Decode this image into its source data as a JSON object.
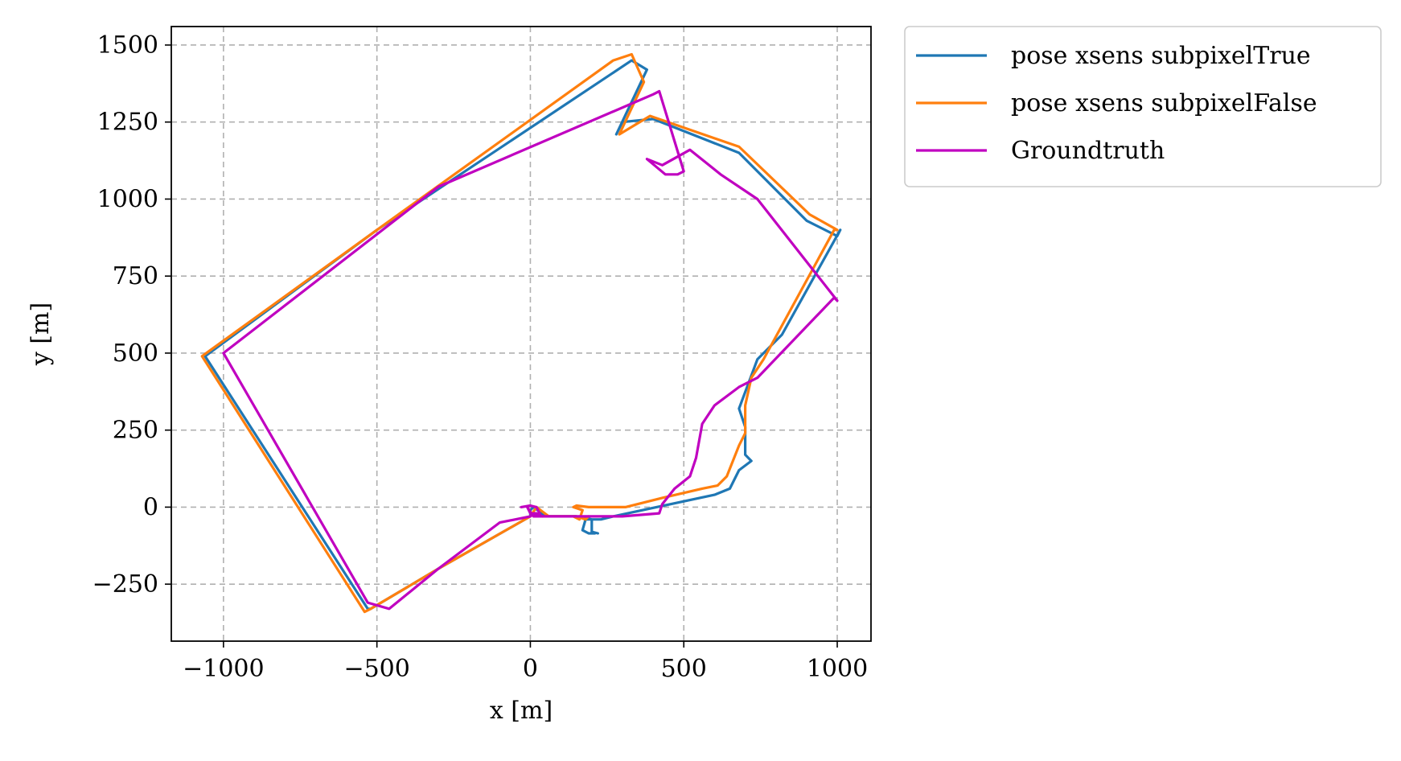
{
  "chart_data": {
    "type": "line",
    "title": "",
    "xlabel": "x [m]",
    "ylabel": "y [m]",
    "xlim": [
      -1170,
      1110
    ],
    "ylim": [
      -435,
      1560
    ],
    "xticks": [
      -1000,
      -500,
      0,
      500,
      1000
    ],
    "xtick_labels": [
      "−1000",
      "−500",
      "0",
      "500",
      "1000"
    ],
    "yticks": [
      -250,
      0,
      250,
      500,
      750,
      1000,
      1250,
      1500
    ],
    "ytick_labels": [
      "−250",
      "0",
      "250",
      "500",
      "750",
      "1000",
      "1250",
      "1500"
    ],
    "grid": true,
    "legend_position": "outside-upper-right",
    "series": [
      {
        "name": "pose xsens subpixelTrue",
        "color": "#1f77b4",
        "x": [
          210,
          190,
          170,
          180,
          230,
          250,
          270,
          600,
          650,
          680,
          720,
          700,
          700,
          680,
          740,
          820,
          1010,
          1000,
          900,
          680,
          400,
          300,
          280,
          380,
          330,
          -500,
          -1060,
          -530,
          -520,
          -300,
          0,
          0,
          10,
          50,
          150,
          200,
          200,
          220
        ],
        "y": [
          -85,
          -85,
          -75,
          -40,
          -40,
          -35,
          -30,
          40,
          60,
          120,
          150,
          170,
          260,
          320,
          480,
          560,
          900,
          880,
          930,
          1150,
          1260,
          1250,
          1210,
          1420,
          1450,
          900,
          490,
          -330,
          -330,
          -200,
          -30,
          -10,
          0,
          -30,
          -30,
          -40,
          -80,
          -85
        ]
      },
      {
        "name": "pose xsens subpixelFalse",
        "color": "#ff7f0e",
        "x": [
          140,
          160,
          170,
          140,
          150,
          190,
          310,
          430,
          560,
          610,
          640,
          680,
          700,
          700,
          720,
          760,
          990,
          1000,
          910,
          680,
          390,
          340,
          290,
          370,
          330,
          270,
          -500,
          -1070,
          -540,
          -520,
          -300,
          0,
          20,
          60,
          150,
          180,
          190
        ],
        "y": [
          -30,
          -40,
          -10,
          0,
          5,
          0,
          0,
          30,
          60,
          70,
          100,
          200,
          240,
          330,
          420,
          480,
          900,
          900,
          950,
          1170,
          1270,
          1240,
          1210,
          1380,
          1470,
          1450,
          900,
          490,
          -340,
          -330,
          -200,
          -30,
          0,
          -30,
          -30,
          -40,
          -30
        ]
      },
      {
        "name": "Groundtruth",
        "color": "#c000c0",
        "x": [
          -30,
          0,
          20,
          30,
          10,
          0,
          -10,
          10,
          40,
          140,
          300,
          420,
          430,
          470,
          520,
          540,
          560,
          600,
          680,
          740,
          990,
          1000,
          740,
          620,
          520,
          430,
          380,
          440,
          480,
          500,
          420,
          400,
          -300,
          -1000,
          -530,
          -460,
          -300,
          -100,
          0,
          10,
          20,
          40
        ],
        "y": [
          0,
          5,
          0,
          -20,
          -30,
          -20,
          0,
          -30,
          -30,
          -30,
          -30,
          -20,
          10,
          60,
          100,
          160,
          270,
          330,
          390,
          420,
          680,
          670,
          1000,
          1080,
          1160,
          1110,
          1130,
          1080,
          1080,
          1090,
          1350,
          1340,
          1040,
          500,
          -310,
          -330,
          -200,
          -50,
          -30,
          -20,
          -20,
          -30
        ]
      }
    ]
  }
}
